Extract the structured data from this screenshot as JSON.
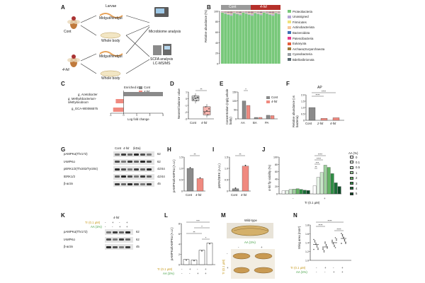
{
  "panels": {
    "A": {
      "label": "A",
      "groups": [
        "Cont",
        "4-hit"
      ],
      "larvae": "Larvae",
      "midgut": "Midgut/hindgut",
      "whole_body": "Whole body",
      "microbiome": "Microbiome analysis",
      "scfa_line1": "SCFA analysis",
      "scfa_line2": "LC-MS/MS"
    },
    "B": {
      "label": "B",
      "groups": [
        "Cont",
        "4-hit"
      ],
      "ylabel": "Relative abundance (%)",
      "legend": [
        {
          "name": "Proteobacteria",
          "color": "#78c87a"
        },
        {
          "name": "Unassigned",
          "color": "#b6a8d6"
        },
        {
          "name": "Firmicutes",
          "color": "#f0e27a"
        },
        {
          "name": "Actinobacteriota",
          "color": "#f6c79a"
        },
        {
          "name": "Bacteroidota",
          "color": "#3f6fb5"
        },
        {
          "name": "Patescibacteria",
          "color": "#e63a8a"
        },
        {
          "name": "Eukaryota",
          "color": "#e45d3a"
        },
        {
          "name": "Archaea;Euryarchaeota",
          "color": "#9b7a3a"
        },
        {
          "name": "Cyanobacteria",
          "color": "#9aa0a6"
        },
        {
          "name": "Bdellovibrionota",
          "color": "#5a6a70"
        }
      ],
      "chart_data": {
        "type": "bar",
        "title": "",
        "ylabel": "Relative abundance (%)",
        "ylim": [
          0,
          100
        ],
        "yticks": [
          "0",
          "20",
          "40",
          "60",
          "80",
          "100"
        ],
        "categories": [
          "Cont",
          "4-hit"
        ],
        "series_note": "Stacked phylum abundance, ~10 samples per group; Proteobacteria dominates (~93-97%)"
      }
    },
    "C": {
      "label": "C",
      "legend_title": "Enriched in",
      "legend": [
        "Cont",
        "4-hit"
      ],
      "xlabel": "Log fold change",
      "chart_data": {
        "type": "bar",
        "categories": [
          "g_Acetobacter",
          "g_Methylobacterium-Methylorubrum",
          "g_GCA-900066575"
        ],
        "values": [
          3.0,
          -0.6,
          -0.8
        ],
        "xlim": [
          -1,
          3
        ],
        "xticks": [
          "-1",
          "0",
          "1",
          "2",
          "3"
        ]
      }
    },
    "D": {
      "label": "D",
      "ylabel": "Nearest balance value",
      "sig": "**",
      "chart_data": {
        "type": "box",
        "categories": [
          "Cont",
          "4-hit"
        ],
        "yticks": [
          "-3",
          "-2",
          "-1",
          "0",
          "1"
        ],
        "ylim": [
          -3,
          1
        ],
        "median": [
          0.1,
          -1.9
        ]
      }
    },
    "E": {
      "label": "E",
      "ylabel": "Concentration (ng/g whole body)",
      "legend": [
        "Cont",
        "4-hit"
      ],
      "sig": "*",
      "chart_data": {
        "type": "bar",
        "categories": [
          "AA",
          "BA",
          "PA"
        ],
        "series": [
          {
            "name": "Cont",
            "values": [
              100,
              8,
              20
            ]
          },
          {
            "name": "4-hit",
            "values": [
              75,
              8,
              18
            ]
          }
        ],
        "ylim": [
          0,
          150
        ],
        "yticks": [
          "0",
          "50",
          "100",
          "150"
        ]
      }
    },
    "F": {
      "label": "F",
      "title": "AP",
      "ylabel": "Relative abundance (vs bacteria)",
      "sig": [
        "****",
        "****"
      ],
      "chart_data": {
        "type": "bar",
        "categories": [
          "Cont",
          "2-hit",
          "4-hit"
        ],
        "values": [
          1.0,
          0.15,
          0.2
        ],
        "ylim": [
          0,
          2.0
        ],
        "yticks": [
          "0",
          "0.5",
          "1.0",
          "1.5",
          "2.0"
        ]
      }
    },
    "G": {
      "label": "G",
      "lanes": [
        "Cont",
        "4-hit"
      ],
      "kda": "(kDa)",
      "rows": [
        {
          "name": "pAMPKα(Thr172)",
          "kda": "62"
        },
        {
          "name": "tAMPKα",
          "kda": "62"
        },
        {
          "name": "pERK1/2(Thr202/Tyr204)",
          "kda": "42/44"
        },
        {
          "name": "tERK1/2",
          "kda": "42/44"
        },
        {
          "name": "β-actin",
          "kda": "45"
        }
      ]
    },
    "H": {
      "label": "H",
      "ylabel": "pAMPKα/tAMPKα (A.U.)",
      "sig": "**",
      "chart_data": {
        "type": "bar",
        "categories": [
          "Cont",
          "4-hit"
        ],
        "values": [
          1.0,
          0.55
        ],
        "ylim": [
          0,
          1.5
        ],
        "yticks": [
          "0",
          "0.5",
          "1.0",
          "1.5"
        ]
      }
    },
    "I": {
      "label": "I",
      "ylabel": "pERK/tERK (A.U.)",
      "sig": "**",
      "chart_data": {
        "type": "bar",
        "categories": [
          "Cont",
          "4-hit"
        ],
        "values": [
          0.1,
          1.1
        ],
        "ylim": [
          0,
          1.5
        ],
        "yticks": [
          "0",
          "0.5",
          "1.0",
          "1.5"
        ]
      }
    },
    "J": {
      "label": "J",
      "ylabel": "4-hit fly viability (%)",
      "xlabel": "Tr (0.1 μM)",
      "legend_title": "AA (%)",
      "groups": [
        "-",
        "+"
      ],
      "sig": [
        "****",
        "****",
        "***",
        "**"
      ],
      "legend": [
        {
          "name": "0",
          "color": "#ffffff"
        },
        {
          "name": "0.1",
          "color": "#e6f3e6"
        },
        {
          "name": "0.5",
          "color": "#c9e6c9"
        },
        {
          "name": "1",
          "color": "#9fd19f"
        },
        {
          "name": "2",
          "color": "#63b363"
        },
        {
          "name": "3",
          "color": "#2f8f45"
        },
        {
          "name": "4",
          "color": "#1b6e38"
        },
        {
          "name": "5",
          "color": "#0d4a26"
        }
      ],
      "chart_data": {
        "type": "bar",
        "categories": [
          "Tr -",
          "Tr +"
        ],
        "series": [
          {
            "name": "0",
            "values": [
              8,
              22
            ]
          },
          {
            "name": "0.1",
            "values": [
              9,
              45
            ]
          },
          {
            "name": "0.5",
            "values": [
              12,
              58
            ]
          },
          {
            "name": "1",
            "values": [
              13,
              78
            ]
          },
          {
            "name": "2",
            "values": [
              14,
              72
            ]
          },
          {
            "name": "3",
            "values": [
              12,
              55
            ]
          },
          {
            "name": "4",
            "values": [
              10,
              30
            ]
          },
          {
            "name": "5",
            "values": [
              9,
              20
            ]
          }
        ],
        "ylim": [
          0,
          100
        ],
        "yticks": [
          "0",
          "20",
          "40",
          "60",
          "80",
          "100"
        ]
      }
    },
    "K": {
      "label": "K",
      "header": "4-hit",
      "tr_label": "Tr (0.1 μM)",
      "aa_label": "AA (1%)",
      "tr_signs": [
        "-",
        "+",
        "-",
        "+"
      ],
      "aa_signs": [
        "-",
        "-",
        "+",
        "+"
      ],
      "rows": [
        {
          "name": "pAMPKα(Thr172)",
          "kda": "62"
        },
        {
          "name": "tAMPKα",
          "kda": "62"
        },
        {
          "name": "β-actin",
          "kda": "45"
        }
      ]
    },
    "L": {
      "label": "L",
      "ylabel": "pAMPKα/tAMPKα (A.U.)",
      "tr_label": "Tr (0.1 μM)",
      "aa_label": "AA (1%)",
      "tr_signs": [
        "-",
        "+",
        "-",
        "+"
      ],
      "aa_signs": [
        "-",
        "-",
        "+",
        "+"
      ],
      "sig": [
        "***",
        "*",
        "**",
        "*"
      ],
      "chart_data": {
        "type": "bar",
        "categories": [
          "-/-",
          "+/-",
          "-/+",
          "+/+"
        ],
        "values": [
          1.0,
          0.9,
          2.8,
          4.2
        ],
        "ylim": [
          0,
          8
        ],
        "yticks": [
          "0",
          "2",
          "4",
          "6",
          "8"
        ]
      }
    },
    "M": {
      "label": "M",
      "wild_type": "Wild-type",
      "aa_label": "AA (1%)",
      "tr_label": "Tr (0.1 μM)",
      "signs": [
        "-",
        "+"
      ]
    },
    "N": {
      "label": "N",
      "ylabel": "Wing area (mm²)",
      "tr_label": "Tr (0.1 μM)",
      "aa_label": "AA (1%)",
      "tr_signs": [
        "-",
        "+",
        "-",
        "+"
      ],
      "aa_signs": [
        "-",
        "-",
        "+",
        "+"
      ],
      "sig": [
        "****",
        "****",
        "****"
      ],
      "chart_data": {
        "type": "scatter",
        "categories": [
          "-/-",
          "+/-",
          "-/+",
          "+/+"
        ],
        "values": [
          1.45,
          1.38,
          1.5,
          1.62
        ],
        "ylim": [
          1.0,
          2.0
        ],
        "yticks": [
          "1.0",
          "1.2",
          "1.4",
          "1.6",
          "1.8"
        ]
      }
    }
  }
}
